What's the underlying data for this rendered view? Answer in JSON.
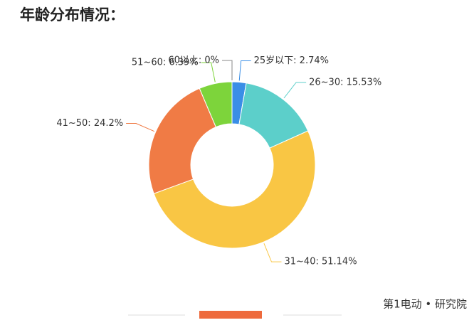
{
  "chart_data": {
    "type": "pie",
    "title": "年龄分布情况：",
    "labels": [
      "25岁以下: 2.74%",
      "26~30: 15.53%",
      "31~40: 51.14%",
      "41~50: 24.2%",
      "51~60: 6.39%",
      "60以上: 0%"
    ],
    "values": [
      2.74,
      15.53,
      51.14,
      24.2,
      6.39,
      0
    ],
    "colors": [
      "#3a8ee6",
      "#5ccfca",
      "#f9c644",
      "#f07b45",
      "#7dd43b",
      "#8a8a8a"
    ],
    "donut": true
  },
  "footer": "第1电动 • 研究院"
}
